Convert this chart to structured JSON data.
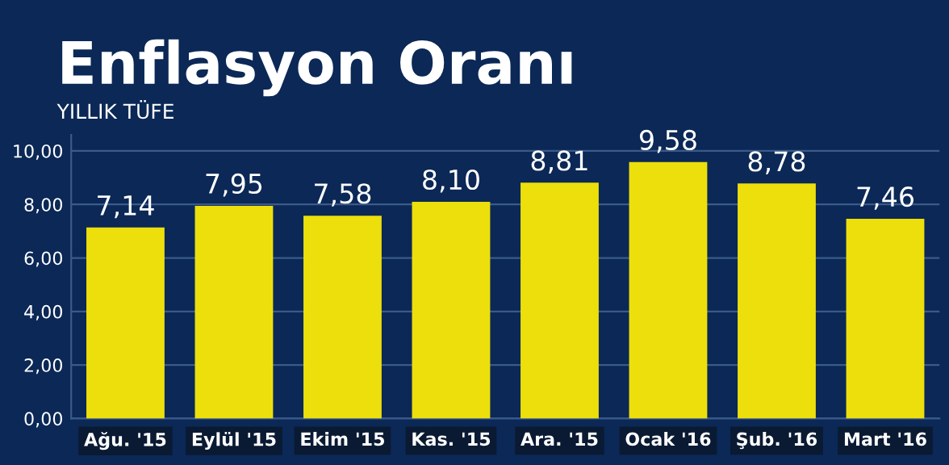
{
  "chart_data": {
    "type": "bar",
    "title": "Enflasyon Oranı",
    "subtitle": "YILLIK TÜFE",
    "categories": [
      "Ağu. '15",
      "Eylül '15",
      "Ekim '15",
      "Kas. '15",
      "Ara. '15",
      "Ocak '16",
      "Şub. '16",
      "Mart '16"
    ],
    "values": [
      7.14,
      7.95,
      7.58,
      8.1,
      8.81,
      9.58,
      8.78,
      7.46
    ],
    "value_labels": [
      "7,14",
      "7,95",
      "7,58",
      "8,10",
      "8,81",
      "9,58",
      "8,78",
      "7,46"
    ],
    "color": "#ecdf0c",
    "ylim": [
      0,
      10.6
    ],
    "yticks": [
      {
        "value": 0,
        "label": "0,00"
      },
      {
        "value": 2,
        "label": "2,00"
      },
      {
        "value": 4,
        "label": "4,00"
      },
      {
        "value": 6,
        "label": "6,00"
      },
      {
        "value": 8,
        "label": "8,00"
      },
      {
        "value": 10,
        "label": "10,00"
      }
    ],
    "grid": "y"
  }
}
